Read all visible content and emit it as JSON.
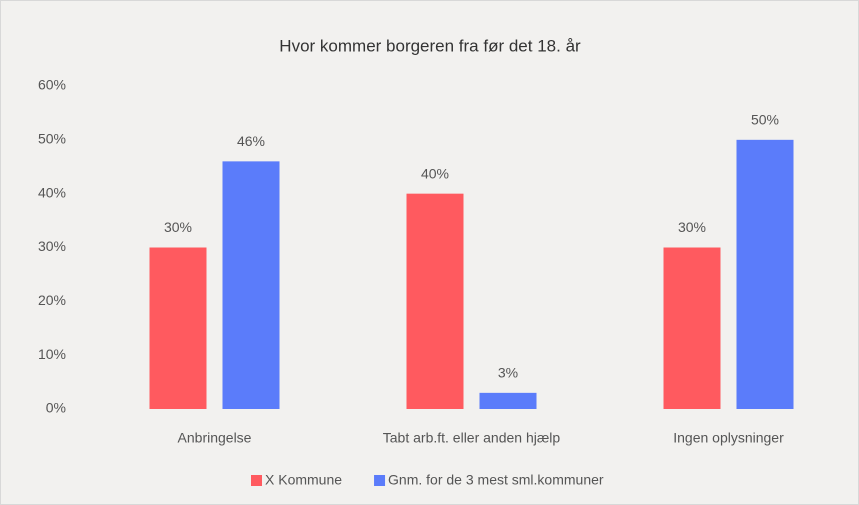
{
  "chart_data": {
    "type": "bar",
    "title": "Hvor kommer borgeren fra før det 18. år",
    "categories": [
      "Anbringelse",
      "Tabt arb.ft. eller anden hjælp",
      "Ingen oplysninger"
    ],
    "series": [
      {
        "name": "X Kommune",
        "color": "#ff5a5f",
        "values": [
          30,
          40,
          30
        ],
        "value_labels": [
          "30%",
          "40%",
          "30%"
        ]
      },
      {
        "name": "Gnm. for de 3 mest sml.kommuner",
        "color": "#5b7cfa",
        "values": [
          46,
          3,
          50
        ],
        "value_labels": [
          "46%",
          "3%",
          "50%"
        ]
      }
    ],
    "ylim": [
      0,
      60
    ],
    "yticks": [
      {
        "value": 0,
        "label": "0%"
      },
      {
        "value": 10,
        "label": "10%"
      },
      {
        "value": 20,
        "label": "20%"
      },
      {
        "value": 30,
        "label": "30%"
      },
      {
        "value": 40,
        "label": "40%"
      },
      {
        "value": 50,
        "label": "50%"
      },
      {
        "value": 60,
        "label": "60%"
      }
    ],
    "grid": false,
    "legend": "bottom"
  }
}
